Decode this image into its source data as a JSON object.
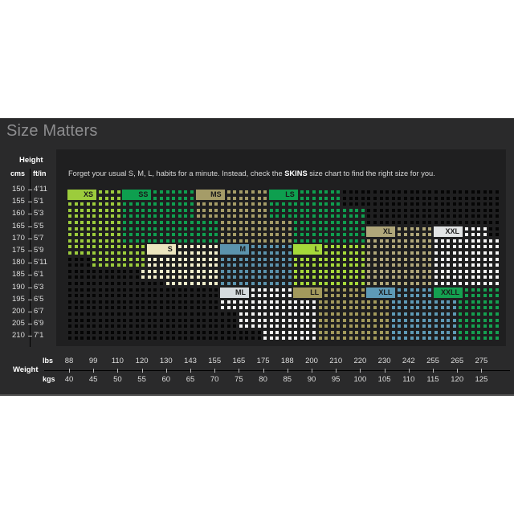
{
  "title": "Size Matters",
  "intro": {
    "before": "Forget your usual S, M, L, habits for a minute. Instead, check the ",
    "brand": "SKINS",
    "after": " size chart to find the right size for you."
  },
  "height_axis": {
    "label": "Height",
    "unit_cm": "cms",
    "unit_ft": "ft/in",
    "rows": [
      {
        "cm": "150",
        "ft": "4'11"
      },
      {
        "cm": "155",
        "ft": "5'1"
      },
      {
        "cm": "160",
        "ft": "5'3"
      },
      {
        "cm": "165",
        "ft": "5'5"
      },
      {
        "cm": "170",
        "ft": "5'7"
      },
      {
        "cm": "175",
        "ft": "5'9"
      },
      {
        "cm": "180",
        "ft": "5'11"
      },
      {
        "cm": "185",
        "ft": "6'1"
      },
      {
        "cm": "190",
        "ft": "6'3"
      },
      {
        "cm": "195",
        "ft": "6'5"
      },
      {
        "cm": "200",
        "ft": "6'7"
      },
      {
        "cm": "205",
        "ft": "6'9"
      },
      {
        "cm": "210",
        "ft": "7'1"
      }
    ]
  },
  "weight_axis": {
    "label": "Weight",
    "unit_lbs": "lbs",
    "unit_kgs": "kgs",
    "lbs": [
      "88",
      "99",
      "110",
      "120",
      "130",
      "143",
      "155",
      "165",
      "175",
      "188",
      "200",
      "210",
      "220",
      "230",
      "242",
      "255",
      "265",
      "275"
    ],
    "kgs": [
      "40",
      "45",
      "50",
      "55",
      "60",
      "65",
      "70",
      "75",
      "80",
      "85",
      "90",
      "95",
      "100",
      "105",
      "110",
      "115",
      "120",
      "125"
    ]
  },
  "sizes": {
    "XS": {
      "label": "XS",
      "color": "#9ccc3c",
      "dot": "#9ccc3c"
    },
    "SS": {
      "label": "SS",
      "color": "#0e9f4f",
      "dot": "#0e9f4f"
    },
    "MS": {
      "label": "MS",
      "color": "#a59c68",
      "dot": "#a59c68"
    },
    "LS": {
      "label": "LS",
      "color": "#0e9f4f",
      "dot": "#0e9f4f"
    },
    "S": {
      "label": "S",
      "color": "#ece6bf",
      "dot": "#f3efcc"
    },
    "M": {
      "label": "M",
      "color": "#5b93ad",
      "dot": "#5b93ad"
    },
    "L": {
      "label": "L",
      "color": "#a6d93a",
      "dot": "#a6d93a"
    },
    "XL": {
      "label": "XL",
      "color": "#b0a77a",
      "dot": "#b0a77a"
    },
    "XXL": {
      "label": "XXL",
      "color": "#e2e4e5",
      "dot": "#f4f4f4"
    },
    "ML": {
      "label": "ML",
      "color": "#d6dbde",
      "dot": "#f4f4f4"
    },
    "LL": {
      "label": "LL",
      "color": "#a39a5c",
      "dot": "#a39a5c"
    },
    "XLL": {
      "label": "XLL",
      "color": "#5e9ab6",
      "dot": "#5e9ab6"
    },
    "XXLL": {
      "label": "XXLL",
      "color": "#14a050",
      "dot": "#14a050"
    }
  },
  "colors": {
    "empty_dot": "#050505"
  }
}
